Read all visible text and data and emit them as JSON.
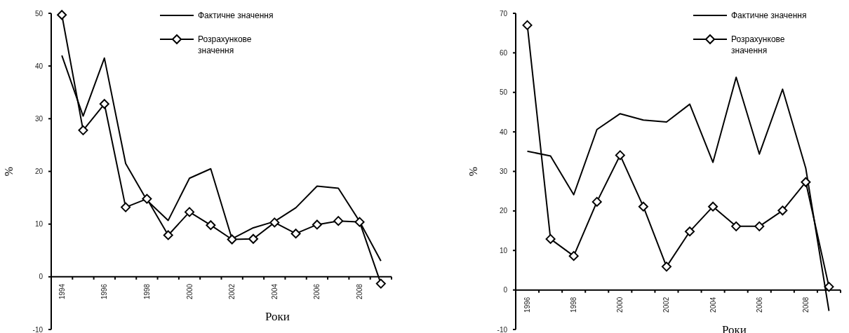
{
  "chart_data": [
    {
      "type": "line",
      "xlabel": "Роки",
      "ylabel": "%",
      "legend": "top right",
      "categories": [
        "1994",
        null,
        "1996",
        null,
        "1998",
        null,
        "2000",
        null,
        "2002",
        null,
        "2004",
        null,
        "2006",
        null,
        "2008",
        null
      ],
      "ylim": [
        -10,
        50
      ],
      "yticks": [
        -10,
        0,
        10,
        20,
        30,
        40,
        50
      ],
      "series": [
        {
          "name": "Фактичне значення",
          "color": "#000000",
          "marker": "none",
          "values": [
            42,
            30.5,
            41.5,
            21.5,
            14.5,
            10.7,
            18.7,
            20.5,
            7.2,
            9.3,
            10.5,
            13.1,
            17.2,
            16.8,
            10.5,
            3.0
          ]
        },
        {
          "name": "Розрахункове значення",
          "color": "#000000",
          "marker": "diamond",
          "values": [
            49.7,
            27.8,
            32.8,
            13.2,
            14.8,
            7.9,
            12.3,
            9.8,
            7.1,
            7.2,
            10.3,
            8.2,
            9.9,
            10.6,
            10.4,
            -1.3
          ]
        }
      ]
    },
    {
      "type": "line",
      "xlabel": "Роки",
      "ylabel": "%",
      "legend": "top right",
      "categories": [
        "1996",
        null,
        "1998",
        null,
        "2000",
        null,
        "2002",
        null,
        "2004",
        null,
        "2006",
        null,
        "2008",
        null
      ],
      "ylim": [
        -10,
        70
      ],
      "yticks": [
        -10,
        0,
        10,
        20,
        30,
        40,
        50,
        60,
        70
      ],
      "series": [
        {
          "name": "Фактичне значення",
          "color": "#000000",
          "marker": "none",
          "values": [
            35.1,
            33.9,
            24.1,
            40.6,
            44.6,
            43,
            42.5,
            47,
            32.3,
            53.8,
            34.4,
            50.8,
            30.8,
            -5.3
          ]
        },
        {
          "name": "Розрахункове значення",
          "color": "#000000",
          "marker": "diamond",
          "values": [
            67,
            12.9,
            8.6,
            22.3,
            34.1,
            21.1,
            5.9,
            14.8,
            21.1,
            16.1,
            16.1,
            20.1,
            27.3,
            0.8
          ]
        }
      ]
    }
  ]
}
